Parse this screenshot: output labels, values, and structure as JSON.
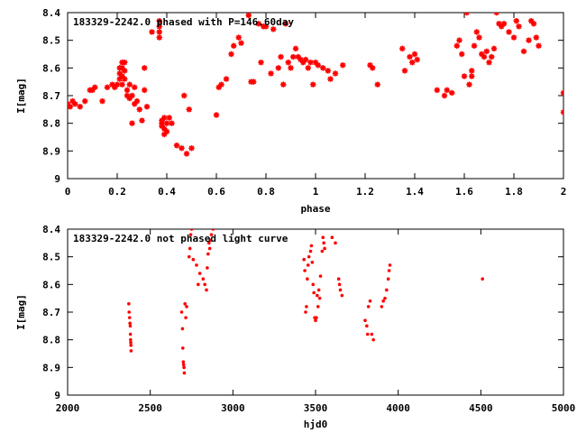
{
  "colors": {
    "points": "#ff0000",
    "axes": "#000000",
    "background": "#ffffff"
  },
  "chart_data": [
    {
      "type": "scatter",
      "title": "183329-2242.0 phased with P=146.60day",
      "xlabel": "phase",
      "ylabel": "I[mag]",
      "xlim": [
        0,
        2
      ],
      "ylim": [
        8.4,
        9.0
      ],
      "y_inverted": true,
      "xticks": [
        "0",
        "0.2",
        "0.4",
        "0.6",
        "0.8",
        "1",
        "1.2",
        "1.4",
        "1.6",
        "1.8",
        "2"
      ],
      "yticks": [
        "8.4",
        "8.5",
        "8.6",
        "8.7",
        "8.8",
        "8.9",
        "9"
      ],
      "grid": false,
      "marker": "star",
      "series": [
        {
          "x": [
            0.0,
            0.01,
            0.02,
            0.03,
            0.05,
            0.07,
            0.09,
            0.1,
            0.11,
            0.14,
            0.16,
            0.18,
            0.19,
            0.2,
            0.21,
            0.21,
            0.21,
            0.22,
            0.22,
            0.22,
            0.22,
            0.23,
            0.23,
            0.23,
            0.24,
            0.24,
            0.25,
            0.25,
            0.26,
            0.26,
            0.27,
            0.27,
            0.28,
            0.29,
            0.3,
            0.31,
            0.31,
            0.32,
            0.34,
            0.37,
            0.37,
            0.37,
            0.37,
            0.38,
            0.38,
            0.38,
            0.39,
            0.39,
            0.39,
            0.4,
            0.4,
            0.41,
            0.42,
            0.44,
            0.46,
            0.47,
            0.48,
            0.49,
            0.5,
            0.6,
            0.61,
            0.62,
            0.64,
            0.66,
            0.67,
            0.69,
            0.7,
            0.73,
            0.74,
            0.75,
            0.77,
            0.78,
            0.79,
            0.8,
            0.82,
            0.83,
            0.85,
            0.86,
            0.87,
            0.88,
            0.89,
            0.9,
            0.91,
            0.92,
            0.93,
            0.94,
            0.95,
            0.96,
            0.97,
            0.98,
            0.99,
            1.0,
            1.01,
            1.03,
            1.05,
            1.06,
            1.08,
            1.11,
            1.22,
            1.23,
            1.25,
            1.35,
            1.36,
            1.38,
            1.39,
            1.4,
            1.41,
            1.49,
            1.52,
            1.53,
            1.55,
            1.57,
            1.58,
            1.59,
            1.6,
            1.61,
            1.62,
            1.63,
            1.63,
            1.64,
            1.65,
            1.66,
            1.67,
            1.68,
            1.69,
            1.7,
            1.71,
            1.72,
            1.73,
            1.74,
            1.75,
            1.76,
            1.78,
            1.8,
            1.81,
            1.82,
            1.84,
            1.86,
            1.87,
            1.88,
            1.89,
            1.9,
            2.0,
            2.0
          ],
          "y": [
            8.73,
            8.74,
            8.72,
            8.73,
            8.74,
            8.72,
            8.68,
            8.68,
            8.67,
            8.72,
            8.67,
            8.66,
            8.67,
            8.66,
            8.64,
            8.62,
            8.6,
            8.58,
            8.6,
            8.63,
            8.66,
            8.58,
            8.61,
            8.64,
            8.68,
            8.7,
            8.66,
            8.71,
            8.7,
            8.8,
            8.73,
            8.67,
            8.72,
            8.75,
            8.79,
            8.68,
            8.6,
            8.74,
            8.47,
            8.43,
            8.45,
            8.47,
            8.49,
            8.8,
            8.79,
            8.81,
            8.78,
            8.82,
            8.84,
            8.83,
            8.8,
            8.78,
            8.8,
            8.88,
            8.89,
            8.7,
            8.91,
            8.75,
            8.89,
            8.77,
            8.67,
            8.66,
            8.64,
            8.55,
            8.52,
            8.49,
            8.51,
            8.41,
            8.65,
            8.65,
            8.44,
            8.58,
            8.45,
            8.45,
            8.62,
            8.46,
            8.6,
            8.56,
            8.66,
            8.44,
            8.58,
            8.6,
            8.56,
            8.53,
            8.56,
            8.57,
            8.58,
            8.57,
            8.6,
            8.58,
            8.66,
            8.58,
            8.59,
            8.6,
            8.61,
            8.64,
            8.62,
            8.59,
            8.59,
            8.6,
            8.66,
            8.53,
            8.61,
            8.56,
            8.58,
            8.55,
            8.57,
            8.68,
            8.7,
            8.68,
            8.69,
            8.52,
            8.5,
            8.55,
            8.63,
            8.4,
            8.66,
            8.61,
            8.63,
            8.52,
            8.47,
            8.49,
            8.55,
            8.56,
            8.54,
            8.58,
            8.56,
            8.53,
            8.4,
            8.44,
            8.45,
            8.44,
            8.47,
            8.49,
            8.43,
            8.45,
            8.54,
            8.5,
            8.43,
            8.44,
            8.49,
            8.52,
            8.69,
            8.76
          ]
        }
      ]
    },
    {
      "type": "scatter",
      "title": "183329-2242.0 not phased light curve",
      "xlabel": "hjd0",
      "ylabel": "I[mag]",
      "xlim": [
        2000,
        5000
      ],
      "ylim": [
        8.4,
        9.0
      ],
      "y_inverted": true,
      "xticks": [
        "2000",
        "2500",
        "3000",
        "3500",
        "4000",
        "4500",
        "5000"
      ],
      "yticks": [
        "8.4",
        "8.5",
        "8.6",
        "8.7",
        "8.8",
        "8.9",
        "9"
      ],
      "grid": false,
      "marker": "dot",
      "series": [
        {
          "x": [
            2370,
            2372,
            2375,
            2377,
            2379,
            2380,
            2381,
            2382,
            2383,
            2384,
            2690,
            2695,
            2697,
            2700,
            2702,
            2704,
            2706,
            2710,
            2715,
            2720,
            2735,
            2740,
            2745,
            2750,
            2760,
            2780,
            2790,
            2800,
            2820,
            2830,
            2840,
            2845,
            2850,
            2855,
            2860,
            2865,
            2870,
            2880,
            3430,
            3435,
            3440,
            3445,
            3450,
            3455,
            3460,
            3470,
            3475,
            3480,
            3485,
            3490,
            3495,
            3500,
            3505,
            3510,
            3515,
            3520,
            3525,
            3530,
            3540,
            3545,
            3550,
            3555,
            3600,
            3620,
            3640,
            3645,
            3650,
            3660,
            3800,
            3810,
            3815,
            3820,
            3830,
            3840,
            3850,
            3900,
            3910,
            3920,
            3930,
            3940,
            3945,
            3950,
            4510
          ],
          "y": [
            8.67,
            8.7,
            8.72,
            8.74,
            8.75,
            8.78,
            8.8,
            8.81,
            8.82,
            8.84,
            8.7,
            8.76,
            8.83,
            8.88,
            8.89,
            8.9,
            8.92,
            8.67,
            8.72,
            8.68,
            8.5,
            8.47,
            8.42,
            8.4,
            8.51,
            8.53,
            8.6,
            8.56,
            8.58,
            8.6,
            8.62,
            8.54,
            8.49,
            8.45,
            8.47,
            8.44,
            8.42,
            8.4,
            8.51,
            8.55,
            8.7,
            8.68,
            8.58,
            8.53,
            8.5,
            8.48,
            8.46,
            8.52,
            8.6,
            8.63,
            8.72,
            8.73,
            8.72,
            8.64,
            8.68,
            8.62,
            8.65,
            8.57,
            8.48,
            8.43,
            8.45,
            8.47,
            8.43,
            8.45,
            8.58,
            8.6,
            8.62,
            8.64,
            8.73,
            8.75,
            8.78,
            8.68,
            8.66,
            8.78,
            8.8,
            8.68,
            8.66,
            8.65,
            8.62,
            8.58,
            8.55,
            8.53,
            8.58
          ]
        }
      ]
    }
  ]
}
